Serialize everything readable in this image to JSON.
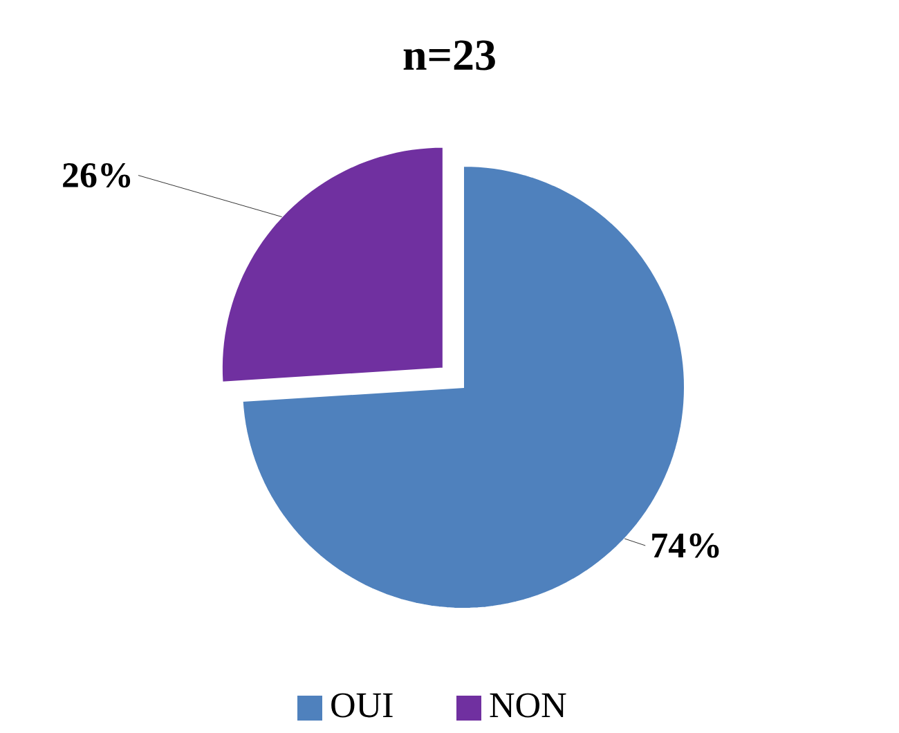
{
  "chart_data": {
    "type": "pie",
    "title": "n=23",
    "categories": [
      "OUI",
      "NON"
    ],
    "values": [
      74,
      26
    ],
    "colors": [
      "#4f81bd",
      "#7030a0"
    ],
    "value_labels": [
      "74%",
      "26%"
    ],
    "legend": "bottom"
  }
}
